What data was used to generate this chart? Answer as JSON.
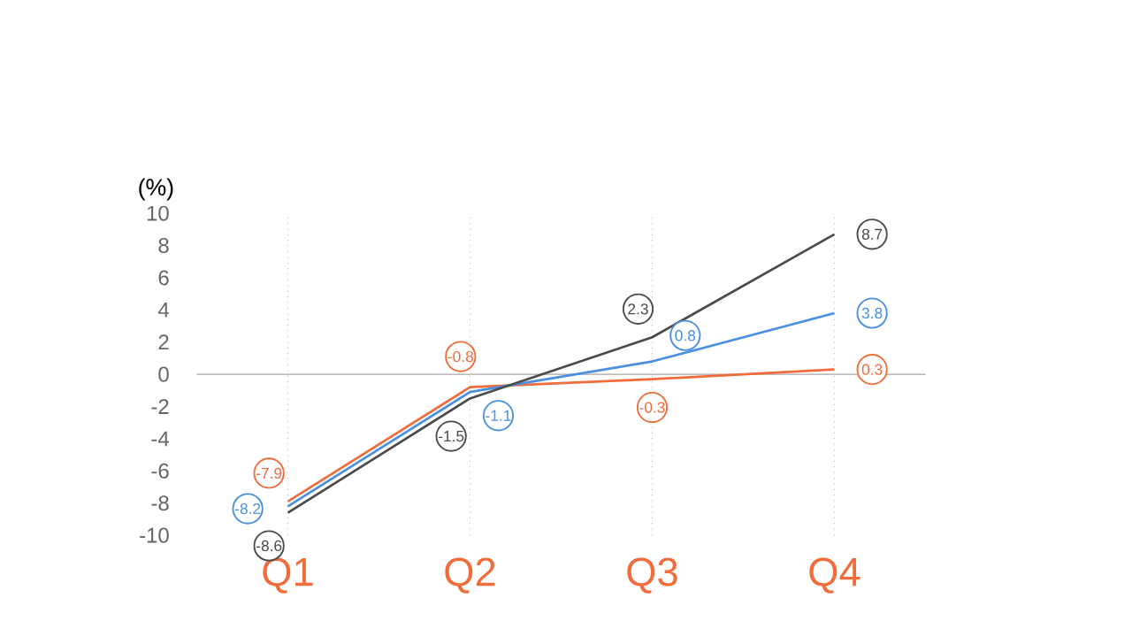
{
  "chart_data": {
    "type": "line",
    "ylabel": "(%)",
    "categories": [
      "Q1",
      "Q2",
      "Q3",
      "Q4"
    ],
    "series": [
      {
        "color": "#f26b3a",
        "values": [
          -7.9,
          -0.8,
          -0.3,
          0.3
        ]
      },
      {
        "color": "#4a8fe0",
        "values": [
          -8.2,
          -1.1,
          0.8,
          3.8
        ]
      },
      {
        "color": "#4a4a4a",
        "values": [
          -8.6,
          -1.5,
          2.3,
          8.7
        ]
      }
    ],
    "ylim": [
      -10,
      10
    ],
    "yticks": [
      -10,
      -8,
      -6,
      -4,
      -2,
      0,
      2,
      4,
      6,
      8,
      10
    ],
    "grid": "x",
    "data_labels": true,
    "marker": "none",
    "line_style": "solid"
  }
}
